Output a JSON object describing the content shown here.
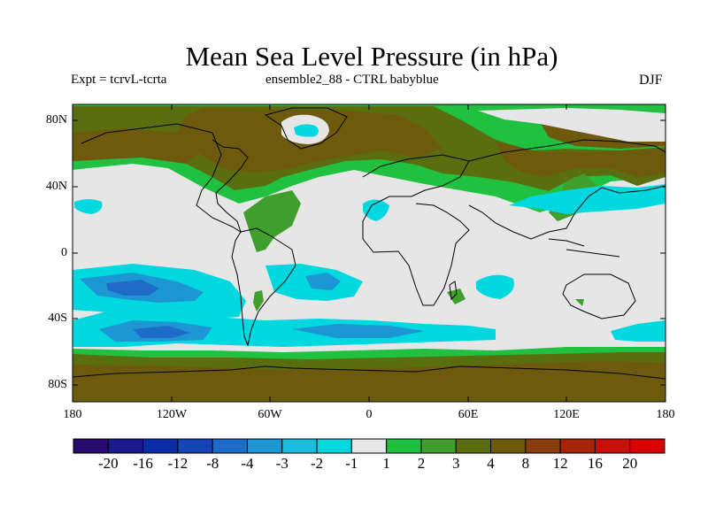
{
  "title": "Mean Sea Level Pressure (in hPa)",
  "subtitle_left": "Expt = tcrvL-tcrta",
  "subtitle_center": "ensemble2_88 - CTRL babyblue",
  "subtitle_right": "DJF",
  "map": {
    "projection": "cylindrical-equidistant",
    "lon_range": [
      -180,
      180
    ],
    "lat_range": [
      -90,
      90
    ],
    "background_band": "1 to -1 (light gray)",
    "y_ticks": [
      "80N",
      "40N",
      "0",
      "40S",
      "80S"
    ],
    "x_ticks": [
      "180",
      "120W",
      "60W",
      "0",
      "60E",
      "120E",
      "180"
    ]
  },
  "colorbar": {
    "labels": [
      "-20",
      "-16",
      "-12",
      "-8",
      "-4",
      "-3",
      "-2",
      "-1",
      "1",
      "2",
      "3",
      "4",
      "8",
      "12",
      "16",
      "20"
    ],
    "colors": [
      "#2a0a6e",
      "#1a1a8c",
      "#0a2ca8",
      "#1546b8",
      "#1f6cc8",
      "#1d96d4",
      "#19bedf",
      "#00d8e0",
      "#e6e6e6",
      "#20c040",
      "#3f9e2c",
      "#5a6e10",
      "#6e5a0c",
      "#8a3c08",
      "#a82408",
      "#c81008",
      "#d80000"
    ]
  }
}
